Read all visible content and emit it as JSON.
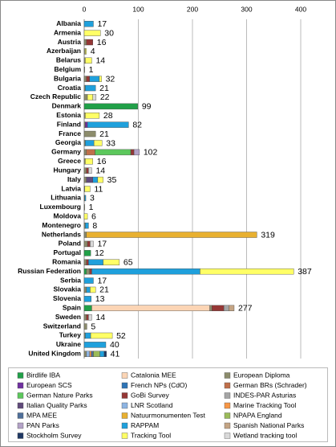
{
  "chart_data": {
    "type": "stacked-bar-horizontal",
    "categories": [
      "Albania",
      "Armenia",
      "Austria",
      "Azerbaijan",
      "Belarus",
      "Belgium",
      "Bulgaria",
      "Croatia",
      "Czech Republic",
      "Denmark",
      "Estonia",
      "Finland",
      "France",
      "Georgia",
      "Germany",
      "Greece",
      "Hungary",
      "Italy",
      "Latvia",
      "Lithuania",
      "Luxembourg",
      "Moldova",
      "Montenegro",
      "Netherlands",
      "Poland",
      "Portugal",
      "Romania",
      "Russian Federation",
      "Serbia",
      "Slovakia",
      "Slovenia",
      "Spain",
      "Sweden",
      "Switzerland",
      "Turkey",
      "Ukraine",
      "United Kingdom"
    ],
    "totals": [
      17,
      30,
      16,
      4,
      14,
      1,
      32,
      21,
      22,
      99,
      28,
      82,
      21,
      33,
      102,
      16,
      14,
      35,
      11,
      3,
      1,
      6,
      8,
      319,
      17,
      12,
      65,
      387,
      17,
      21,
      13,
      277,
      14,
      5,
      52,
      40,
      41
    ],
    "xlim": [
      0,
      400
    ],
    "xticks": [
      0,
      100,
      200,
      300,
      400
    ],
    "grid": true,
    "series": [
      {
        "name": "Birdlife IBA",
        "color": "#21a048",
        "values": [
          0,
          0,
          0,
          0,
          0,
          0,
          0,
          0,
          0,
          99,
          0,
          0,
          0,
          0,
          0,
          0,
          0,
          0,
          0,
          0,
          0,
          0,
          0,
          0,
          0,
          12,
          0,
          4,
          0,
          0,
          0,
          14,
          0,
          0,
          0,
          0,
          0
        ]
      },
      {
        "name": "Catalonia MEE",
        "color": "#fcd5b5",
        "values": [
          0,
          0,
          0,
          0,
          0,
          0,
          0,
          0,
          0,
          0,
          0,
          0,
          0,
          0,
          0,
          0,
          0,
          0,
          0,
          0,
          0,
          0,
          0,
          0,
          0,
          0,
          0,
          0,
          0,
          0,
          0,
          218,
          0,
          0,
          0,
          0,
          0
        ]
      },
      {
        "name": "European Diploma",
        "color": "#8c8c6c",
        "values": [
          0,
          0,
          4,
          2,
          2,
          1,
          4,
          2,
          6,
          0,
          2,
          2,
          21,
          2,
          4,
          2,
          4,
          4,
          1,
          1,
          1,
          0,
          2,
          4,
          6,
          0,
          4,
          6,
          0,
          4,
          0,
          4,
          4,
          5,
          2,
          0,
          4
        ]
      },
      {
        "name": "European SCS",
        "color": "#7030a0",
        "values": [
          0,
          0,
          0,
          0,
          0,
          0,
          0,
          0,
          0,
          0,
          0,
          4,
          0,
          0,
          0,
          0,
          0,
          0,
          0,
          0,
          0,
          0,
          0,
          0,
          0,
          0,
          0,
          0,
          0,
          0,
          0,
          0,
          0,
          0,
          0,
          0,
          0
        ]
      },
      {
        "name": "French NPs (CdO)",
        "color": "#2e75b6",
        "values": [
          0,
          0,
          0,
          0,
          0,
          0,
          0,
          0,
          0,
          0,
          0,
          0,
          0,
          0,
          0,
          0,
          0,
          0,
          0,
          0,
          0,
          0,
          0,
          0,
          0,
          0,
          0,
          0,
          0,
          0,
          0,
          0,
          0,
          0,
          0,
          0,
          0
        ]
      },
      {
        "name": "German BRs (Schrader)",
        "color": "#c0704a",
        "values": [
          0,
          0,
          0,
          0,
          0,
          0,
          0,
          0,
          0,
          0,
          0,
          0,
          0,
          0,
          16,
          0,
          0,
          0,
          0,
          0,
          0,
          0,
          0,
          0,
          0,
          0,
          0,
          0,
          0,
          0,
          0,
          0,
          0,
          0,
          0,
          0,
          0
        ]
      },
      {
        "name": "German Nature Parks",
        "color": "#5cc85c",
        "values": [
          0,
          0,
          0,
          0,
          0,
          0,
          0,
          0,
          0,
          0,
          0,
          0,
          0,
          0,
          66,
          0,
          0,
          0,
          0,
          0,
          0,
          0,
          0,
          0,
          0,
          0,
          0,
          0,
          0,
          0,
          0,
          0,
          0,
          0,
          0,
          0,
          0
        ]
      },
      {
        "name": "GoBi Survey",
        "color": "#953735",
        "values": [
          0,
          0,
          12,
          0,
          0,
          0,
          6,
          0,
          0,
          0,
          0,
          0,
          0,
          0,
          6,
          0,
          4,
          0,
          0,
          0,
          0,
          0,
          0,
          0,
          5,
          0,
          4,
          4,
          0,
          0,
          0,
          22,
          4,
          0,
          0,
          0,
          0
        ]
      },
      {
        "name": "INDES-PAR Asturias",
        "color": "#a5a5a5",
        "values": [
          0,
          0,
          0,
          0,
          0,
          0,
          0,
          0,
          0,
          0,
          0,
          0,
          0,
          0,
          0,
          0,
          0,
          0,
          0,
          0,
          0,
          0,
          0,
          0,
          0,
          0,
          0,
          0,
          0,
          0,
          0,
          9,
          0,
          0,
          0,
          0,
          0
        ]
      },
      {
        "name": "Italian Quality Parks",
        "color": "#604a7b",
        "values": [
          0,
          0,
          0,
          0,
          0,
          0,
          0,
          0,
          0,
          0,
          0,
          0,
          0,
          0,
          0,
          0,
          0,
          12,
          0,
          0,
          0,
          0,
          0,
          0,
          0,
          0,
          0,
          0,
          0,
          0,
          0,
          0,
          0,
          0,
          0,
          0,
          0
        ]
      },
      {
        "name": "LNR Scotland",
        "color": "#8db4e2",
        "values": [
          0,
          0,
          0,
          0,
          0,
          0,
          0,
          0,
          0,
          0,
          0,
          0,
          0,
          0,
          0,
          0,
          0,
          0,
          0,
          0,
          0,
          0,
          0,
          0,
          0,
          0,
          0,
          0,
          0,
          0,
          0,
          0,
          0,
          0,
          0,
          0,
          6
        ]
      },
      {
        "name": "Marine Tracking Tool",
        "color": "#f79646",
        "values": [
          0,
          0,
          0,
          0,
          0,
          0,
          0,
          0,
          0,
          0,
          0,
          0,
          0,
          0,
          0,
          0,
          0,
          0,
          0,
          0,
          0,
          0,
          0,
          0,
          0,
          0,
          0,
          0,
          0,
          0,
          0,
          0,
          0,
          0,
          0,
          0,
          3
        ]
      },
      {
        "name": "MPA MEE",
        "color": "#4f6f9a",
        "values": [
          0,
          0,
          0,
          0,
          0,
          0,
          0,
          0,
          0,
          0,
          0,
          0,
          0,
          0,
          0,
          0,
          0,
          0,
          0,
          0,
          0,
          0,
          0,
          0,
          0,
          0,
          0,
          0,
          0,
          0,
          0,
          0,
          0,
          0,
          0,
          0,
          4
        ]
      },
      {
        "name": "Natuurmonumenten Test",
        "color": "#e8b030",
        "values": [
          0,
          0,
          0,
          0,
          0,
          0,
          0,
          0,
          0,
          0,
          0,
          0,
          0,
          0,
          0,
          0,
          0,
          0,
          0,
          0,
          0,
          0,
          0,
          315,
          0,
          0,
          0,
          0,
          0,
          0,
          0,
          0,
          0,
          0,
          0,
          0,
          0
        ]
      },
      {
        "name": "NPAPA England",
        "color": "#9bbb59",
        "values": [
          0,
          0,
          0,
          0,
          0,
          0,
          0,
          0,
          0,
          0,
          0,
          0,
          0,
          0,
          0,
          0,
          0,
          0,
          0,
          0,
          0,
          0,
          0,
          0,
          0,
          0,
          0,
          0,
          0,
          0,
          0,
          0,
          0,
          0,
          0,
          0,
          12
        ]
      },
      {
        "name": "PAN Parks",
        "color": "#b3a2c7",
        "values": [
          0,
          0,
          0,
          0,
          0,
          0,
          0,
          0,
          0,
          0,
          0,
          0,
          0,
          0,
          10,
          0,
          0,
          0,
          0,
          0,
          0,
          0,
          0,
          0,
          0,
          0,
          0,
          0,
          0,
          0,
          0,
          0,
          0,
          0,
          0,
          0,
          0
        ]
      },
      {
        "name": "RAPPAM",
        "color": "#1fa0dc",
        "values": [
          17,
          0,
          0,
          0,
          0,
          0,
          18,
          19,
          0,
          0,
          0,
          76,
          0,
          16,
          0,
          0,
          0,
          9,
          0,
          2,
          0,
          0,
          6,
          0,
          0,
          0,
          27,
          200,
          17,
          7,
          13,
          0,
          0,
          0,
          10,
          40,
          8
        ]
      },
      {
        "name": "Spanish National Parks",
        "color": "#c4a484",
        "values": [
          0,
          0,
          0,
          0,
          0,
          0,
          0,
          0,
          0,
          0,
          0,
          0,
          0,
          0,
          0,
          0,
          0,
          0,
          0,
          0,
          0,
          0,
          0,
          0,
          0,
          0,
          0,
          0,
          0,
          0,
          0,
          10,
          0,
          0,
          0,
          0,
          0
        ]
      },
      {
        "name": "Stockholm Survey",
        "color": "#1f3864",
        "values": [
          0,
          0,
          0,
          0,
          0,
          0,
          0,
          0,
          0,
          0,
          0,
          0,
          0,
          0,
          0,
          0,
          0,
          0,
          0,
          0,
          0,
          0,
          0,
          0,
          0,
          0,
          0,
          0,
          0,
          0,
          0,
          0,
          0,
          0,
          0,
          0,
          4
        ]
      },
      {
        "name": "Tracking Tool",
        "color": "#ffff66",
        "values": [
          0,
          30,
          0,
          2,
          12,
          0,
          4,
          0,
          10,
          0,
          26,
          0,
          0,
          15,
          0,
          14,
          0,
          10,
          10,
          0,
          0,
          6,
          0,
          0,
          0,
          0,
          30,
          173,
          0,
          10,
          0,
          0,
          0,
          0,
          40,
          0,
          0
        ]
      },
      {
        "name": "Wetland tracking tool",
        "color": "#d9d9d9",
        "values": [
          0,
          0,
          0,
          0,
          0,
          0,
          0,
          0,
          6,
          0,
          0,
          0,
          0,
          0,
          0,
          0,
          6,
          0,
          0,
          0,
          0,
          0,
          0,
          0,
          6,
          0,
          0,
          0,
          0,
          0,
          0,
          0,
          6,
          0,
          0,
          0,
          0
        ]
      }
    ]
  }
}
